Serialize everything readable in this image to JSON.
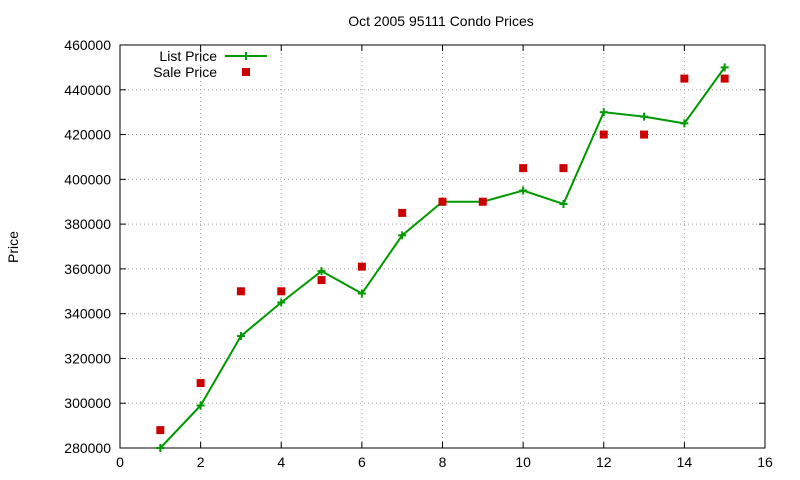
{
  "chart_data": {
    "type": "line",
    "title": "Oct 2005 95111 Condo Prices",
    "xlabel": "",
    "ylabel": "Price",
    "xlim": [
      0,
      16
    ],
    "ylim": [
      280000,
      460000
    ],
    "xticks": [
      0,
      2,
      4,
      6,
      8,
      10,
      12,
      14,
      16
    ],
    "yticks": [
      280000,
      300000,
      320000,
      340000,
      360000,
      380000,
      400000,
      420000,
      440000,
      460000
    ],
    "grid": true,
    "legend": "top-left",
    "series": [
      {
        "name": "List Price",
        "style": "line+cross",
        "color": "#009900",
        "points": [
          [
            1,
            280000
          ],
          [
            2,
            299000
          ],
          [
            3,
            330000
          ],
          [
            4,
            345000
          ],
          [
            5,
            359000
          ],
          [
            6,
            349000
          ],
          [
            7,
            375000
          ],
          [
            8,
            390000
          ],
          [
            9,
            390000
          ],
          [
            10,
            395000
          ],
          [
            11,
            389000
          ],
          [
            12,
            430000
          ],
          [
            13,
            428000
          ],
          [
            14,
            425000
          ],
          [
            15,
            450000
          ]
        ]
      },
      {
        "name": "Sale Price",
        "style": "square",
        "color": "#cc0000",
        "points": [
          [
            1,
            288000
          ],
          [
            2,
            309000
          ],
          [
            3,
            350000
          ],
          [
            4,
            350000
          ],
          [
            5,
            355000
          ],
          [
            6,
            361000
          ],
          [
            7,
            385000
          ],
          [
            8,
            390000
          ],
          [
            9,
            390000
          ],
          [
            10,
            405000
          ],
          [
            11,
            405000
          ],
          [
            12,
            420000
          ],
          [
            13,
            420000
          ],
          [
            14,
            445000
          ],
          [
            15,
            445000
          ]
        ]
      }
    ]
  }
}
